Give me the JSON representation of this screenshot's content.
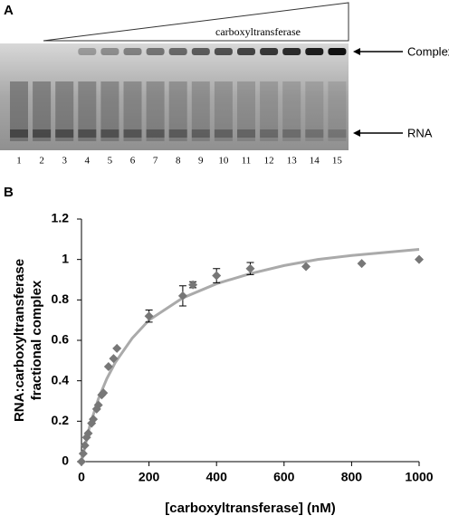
{
  "panel_a": {
    "label": "A",
    "gradient_label": "carboxyltransferase",
    "complex_label": "Complex",
    "rna_label": "RNA",
    "lanes": [
      "1",
      "2",
      "3",
      "4",
      "5",
      "6",
      "7",
      "8",
      "9",
      "10",
      "11",
      "12",
      "13",
      "14",
      "15"
    ]
  },
  "chart_data": {
    "type": "scatter",
    "panel_label": "B",
    "x_label": "[carboxyltransferase] (nM)",
    "y_label": [
      "RNA:carboxyltransferase",
      "fractional complex"
    ],
    "xlim": [
      0,
      1000
    ],
    "xticks": [
      0,
      200,
      400,
      600,
      800,
      1000
    ],
    "ylim": [
      0,
      1.2
    ],
    "yticks": [
      0,
      0.2,
      0.4,
      0.6,
      0.8,
      1,
      1.2
    ],
    "series": [
      {
        "kind": "points",
        "color": "#777777",
        "x": [
          0,
          5,
          10,
          15,
          20,
          30,
          35,
          45,
          50,
          60,
          65,
          80,
          95,
          105,
          200,
          300,
          330,
          400,
          500,
          665,
          830,
          1000
        ],
        "values": [
          0,
          0.04,
          0.08,
          0.12,
          0.14,
          0.19,
          0.21,
          0.26,
          0.28,
          0.33,
          0.34,
          0.47,
          0.51,
          0.56,
          0.72,
          0.82,
          0.875,
          0.92,
          0.955,
          0.965,
          0.98,
          1.0
        ],
        "errors": [
          null,
          null,
          null,
          null,
          null,
          null,
          null,
          null,
          null,
          null,
          null,
          null,
          null,
          null,
          0.03,
          0.05,
          0.015,
          0.035,
          0.03,
          null,
          null,
          null
        ]
      },
      {
        "kind": "fit",
        "color": "#aaaaaa",
        "x": [
          0,
          25,
          50,
          75,
          100,
          150,
          200,
          300,
          400,
          500,
          600,
          700,
          800,
          900,
          1000
        ],
        "values": [
          0,
          0.18,
          0.31,
          0.41,
          0.49,
          0.61,
          0.7,
          0.81,
          0.88,
          0.93,
          0.97,
          1.0,
          1.02,
          1.035,
          1.05
        ]
      }
    ]
  }
}
